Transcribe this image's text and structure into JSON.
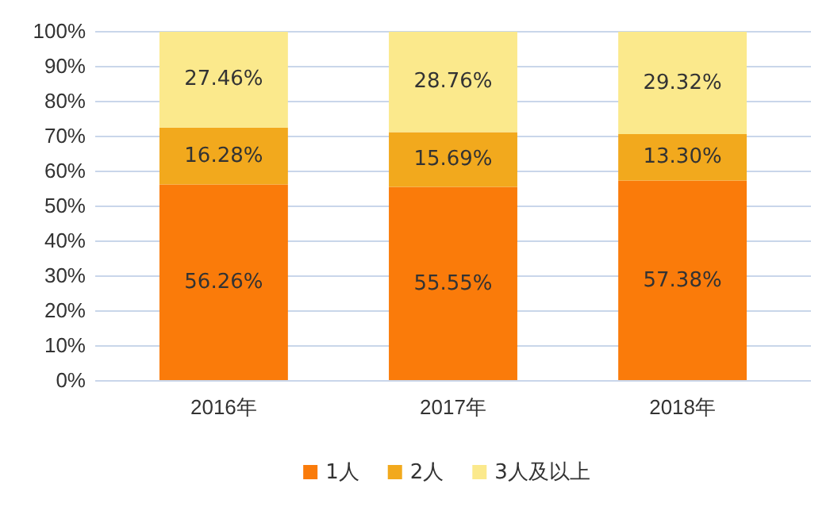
{
  "chart_data": {
    "type": "bar",
    "stacked": true,
    "categories": [
      "2016年",
      "2017年",
      "2018年"
    ],
    "series": [
      {
        "name": "1人",
        "color": "#fa7b0a",
        "values": [
          56.26,
          55.55,
          57.38
        ],
        "value_labels": [
          "56.26%",
          "55.55%",
          "57.38%"
        ]
      },
      {
        "name": "2人",
        "color": "#f2a91d",
        "values": [
          16.28,
          15.69,
          13.3
        ],
        "value_labels": [
          "16.28%",
          "15.69%",
          "13.30%"
        ]
      },
      {
        "name": "3人及以上",
        "color": "#fbe98c",
        "values": [
          27.46,
          28.76,
          29.32
        ],
        "value_labels": [
          "27.46%",
          "28.76%",
          "29.32%"
        ]
      }
    ],
    "ylim": [
      0,
      100
    ],
    "yticks": [
      {
        "value": 0,
        "label": "0%"
      },
      {
        "value": 10,
        "label": "10%"
      },
      {
        "value": 20,
        "label": "20%"
      },
      {
        "value": 30,
        "label": "30%"
      },
      {
        "value": 40,
        "label": "40%"
      },
      {
        "value": 50,
        "label": "50%"
      },
      {
        "value": 60,
        "label": "60%"
      },
      {
        "value": 70,
        "label": "70%"
      },
      {
        "value": 80,
        "label": "80%"
      },
      {
        "value": 90,
        "label": "90%"
      },
      {
        "value": 100,
        "label": "100%"
      }
    ],
    "grid": "y",
    "legend": "bottom"
  }
}
